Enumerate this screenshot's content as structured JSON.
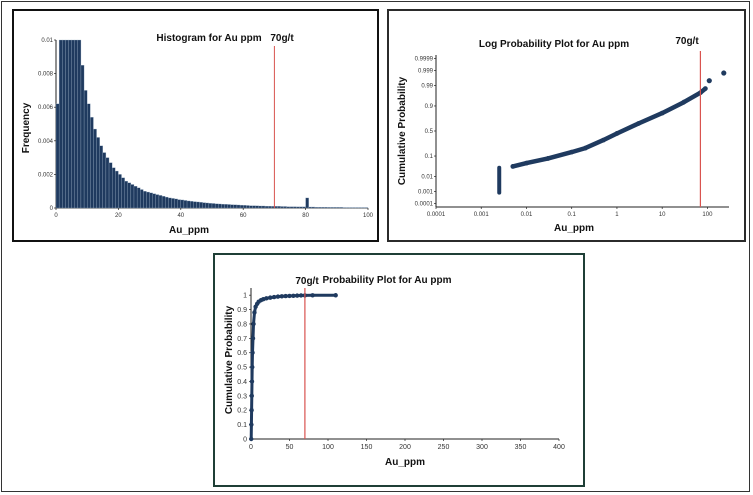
{
  "chart_data": [
    {
      "type": "bar",
      "title": "Histogram for Au ppm",
      "xlabel": "Au_ppm",
      "ylabel": "Frequency",
      "xlim": [
        0,
        100
      ],
      "ylim": [
        0,
        0.01
      ],
      "xticks": [
        "0",
        "20",
        "40",
        "60",
        "80",
        "100"
      ],
      "yticks": [
        "0",
        "0.002",
        "0.004",
        "0.006",
        "0.008",
        "0.01"
      ],
      "bin_width": 1,
      "bin_start": 0,
      "values": [
        0.0062,
        0.01,
        0.01,
        0.01,
        0.01,
        0.01,
        0.01,
        0.01,
        0.0085,
        0.007,
        0.0062,
        0.0054,
        0.0047,
        0.0042,
        0.0037,
        0.0033,
        0.003,
        0.0027,
        0.0024,
        0.0022,
        0.002,
        0.0018,
        0.0016,
        0.0015,
        0.0014,
        0.0013,
        0.0012,
        0.0011,
        0.001,
        0.00095,
        0.0009,
        0.00085,
        0.0008,
        0.00075,
        0.0007,
        0.00065,
        0.0006,
        0.00057,
        0.00054,
        0.0005,
        0.00048,
        0.00045,
        0.00042,
        0.0004,
        0.00038,
        0.00036,
        0.00034,
        0.00032,
        0.0003,
        0.00028,
        0.00027,
        0.00025,
        0.00024,
        0.00023,
        0.00022,
        0.00021,
        0.0002,
        0.00019,
        0.00018,
        0.00017,
        0.00016,
        0.00015,
        0.00014,
        0.00014,
        0.00013,
        0.00012,
        0.00012,
        0.00011,
        0.00011,
        0.0001,
        0.0001,
        0.0001,
        9e-05,
        9e-05,
        8e-05,
        8e-05,
        8e-05,
        7e-05,
        7e-05,
        7e-05,
        0.0006,
        6e-05,
        6e-05,
        5e-05,
        5e-05,
        5e-05,
        5e-05,
        4e-05,
        4e-05,
        4e-05,
        4e-05,
        4e-05,
        3e-05,
        3e-05,
        3e-05,
        3e-05,
        3e-05,
        3e-05,
        3e-05,
        3e-05
      ],
      "reference_line": {
        "x": 70,
        "label": "70g/t",
        "color": "#d9534f"
      },
      "bar_color": "#1f3a5f",
      "grid": false
    },
    {
      "type": "scatter",
      "title": "Log Probability Plot for Au ppm",
      "xlabel": "Au_ppm",
      "ylabel": "Cumulative Probability",
      "x_scale": "log",
      "y_scale": "probability",
      "xlim": [
        0.0001,
        300
      ],
      "ylim": [
        5e-05,
        0.99995
      ],
      "xticks": [
        {
          "v": 0.0001,
          "label": "0.0001"
        },
        {
          "v": 0.001,
          "label": "0.001"
        },
        {
          "v": 0.01,
          "label": "0.01"
        },
        {
          "v": 0.1,
          "label": "0.1"
        },
        {
          "v": 1,
          "label": "1"
        },
        {
          "v": 10,
          "label": "10"
        },
        {
          "v": 100,
          "label": "100"
        }
      ],
      "yticks": [
        {
          "v": 0.0001,
          "label": "0.0001"
        },
        {
          "v": 0.001,
          "label": "0.001"
        },
        {
          "v": 0.01,
          "label": "0.01"
        },
        {
          "v": 0.1,
          "label": "0.1"
        },
        {
          "v": 0.5,
          "label": "0.5"
        },
        {
          "v": 0.9,
          "label": "0.9"
        },
        {
          "v": 0.99,
          "label": "0.99"
        },
        {
          "v": 0.999,
          "label": "0.999"
        },
        {
          "v": 0.9999,
          "label": "0.9999"
        }
      ],
      "cluster": {
        "x": 0.0025,
        "y_from": 0.0008,
        "y_to": 0.03
      },
      "curve": [
        {
          "x": 0.005,
          "y": 0.035
        },
        {
          "x": 0.01,
          "y": 0.05
        },
        {
          "x": 0.03,
          "y": 0.08
        },
        {
          "x": 0.1,
          "y": 0.14
        },
        {
          "x": 0.2,
          "y": 0.19
        },
        {
          "x": 0.5,
          "y": 0.32
        },
        {
          "x": 1,
          "y": 0.45
        },
        {
          "x": 3,
          "y": 0.65
        },
        {
          "x": 10,
          "y": 0.82
        },
        {
          "x": 30,
          "y": 0.93
        },
        {
          "x": 70,
          "y": 0.975
        },
        {
          "x": 90,
          "y": 0.985
        }
      ],
      "outliers": [
        {
          "x": 110,
          "y": 0.995
        },
        {
          "x": 230,
          "y": 0.9985
        }
      ],
      "reference_line": {
        "x": 70,
        "label": "70g/t",
        "color": "#d9534f"
      },
      "marker_color": "#1f3a5f",
      "grid": false
    },
    {
      "type": "scatter",
      "title": "Probability Plot for Au ppm",
      "xlabel": "Au_ppm",
      "ylabel": "Cumulative Probability",
      "xlim": [
        0,
        400
      ],
      "ylim": [
        0,
        1.05
      ],
      "xticks": [
        "0",
        "50",
        "100",
        "150",
        "200",
        "250",
        "300",
        "350",
        "400"
      ],
      "yticks": [
        "0",
        "0.1",
        "0.2",
        "0.3",
        "0.4",
        "0.5",
        "0.6",
        "0.7",
        "0.8",
        "0.9",
        "1"
      ],
      "points": [
        {
          "x": 0.3,
          "y": 0.0
        },
        {
          "x": 0.5,
          "y": 0.1
        },
        {
          "x": 0.8,
          "y": 0.2
        },
        {
          "x": 1.0,
          "y": 0.3
        },
        {
          "x": 1.3,
          "y": 0.4
        },
        {
          "x": 1.6,
          "y": 0.5
        },
        {
          "x": 2.0,
          "y": 0.6
        },
        {
          "x": 2.6,
          "y": 0.7
        },
        {
          "x": 3.3,
          "y": 0.8
        },
        {
          "x": 4.5,
          "y": 0.88
        },
        {
          "x": 6.0,
          "y": 0.92
        },
        {
          "x": 8.0,
          "y": 0.94
        },
        {
          "x": 10.0,
          "y": 0.955
        },
        {
          "x": 13.0,
          "y": 0.965
        },
        {
          "x": 16.0,
          "y": 0.972
        },
        {
          "x": 20.0,
          "y": 0.978
        },
        {
          "x": 25.0,
          "y": 0.983
        },
        {
          "x": 30.0,
          "y": 0.987
        },
        {
          "x": 35.0,
          "y": 0.99
        },
        {
          "x": 40.0,
          "y": 0.992
        },
        {
          "x": 45.0,
          "y": 0.994
        },
        {
          "x": 50.0,
          "y": 0.995
        },
        {
          "x": 55.0,
          "y": 0.996
        },
        {
          "x": 60.0,
          "y": 0.997
        },
        {
          "x": 65.0,
          "y": 0.998
        },
        {
          "x": 70.0,
          "y": 0.9985
        },
        {
          "x": 80.0,
          "y": 0.999
        },
        {
          "x": 110.0,
          "y": 0.9995
        }
      ],
      "reference_line": {
        "x": 70,
        "label": "70g/t",
        "color": "#d9534f"
      },
      "marker_color": "#1f3a5f",
      "grid": false
    }
  ]
}
